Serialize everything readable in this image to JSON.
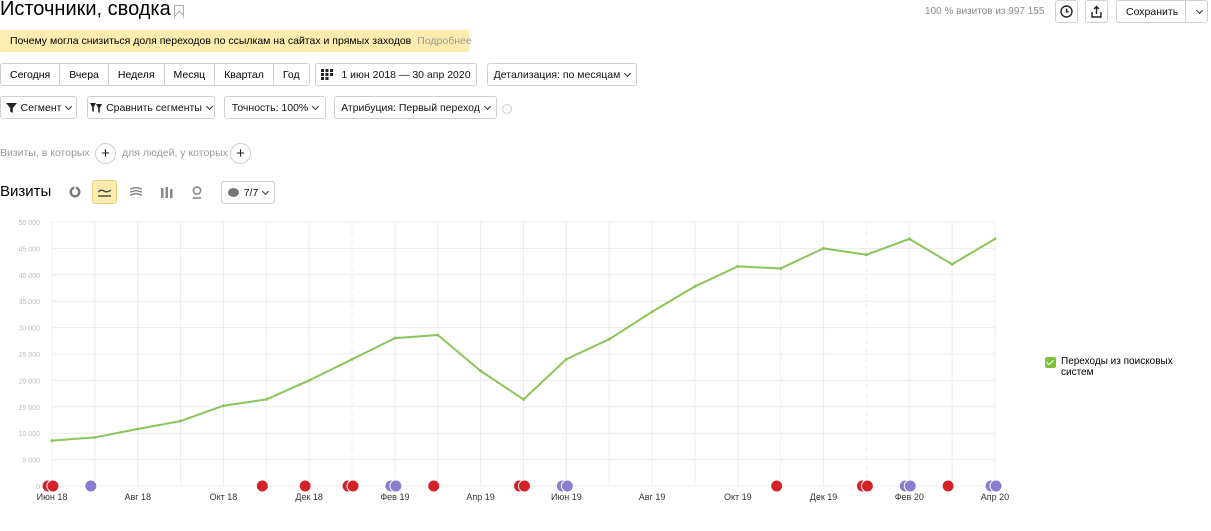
{
  "header": {
    "title": "Источники, сводка",
    "visits_info": "100 % визитов из 997 155",
    "save_label": "Сохранить"
  },
  "warning": {
    "text": "Почему могла снизиться доля переходов по ссылкам на сайтах и прямых заходов",
    "more": "Подробнее"
  },
  "periods": [
    "Сегодня",
    "Вчера",
    "Неделя",
    "Месяц",
    "Квартал",
    "Год"
  ],
  "date_range": "1 июн 2018 — 30 апр 2020",
  "detail_label": "Детализация: по месяцам",
  "filters": {
    "segment": "Сегмент",
    "compare": "Сравнить сегменты",
    "accuracy": "Точность: 100%",
    "attribution": "Атрибуция: Первый переход"
  },
  "segment_hint": {
    "visits_label": "Визиты, в которых",
    "people_label": "для людей, у которых"
  },
  "section_title": "Визиты",
  "annotations_label": "7/7",
  "colors": {
    "line": "#8ac55a",
    "accent_yellow": "#fcecae",
    "marker_red": "#d2232a",
    "marker_purple": "#8c7ccf"
  },
  "chart_data": {
    "type": "line",
    "series": [
      {
        "name": "Переходы из поисковых систем",
        "values": [
          8600,
          9200,
          10800,
          12300,
          15200,
          16400,
          20000,
          24000,
          28000,
          28600,
          21800,
          16400,
          24000,
          27800,
          33000,
          37800,
          41600,
          41200,
          45000,
          43800,
          46800,
          42000,
          46800
        ]
      }
    ],
    "x": [
      "2018-06",
      "2018-07",
      "2018-08",
      "2018-09",
      "2018-10",
      "2018-11",
      "2018-12",
      "2019-01",
      "2019-02",
      "2019-03",
      "2019-04",
      "2019-05",
      "2019-06",
      "2019-07",
      "2019-08",
      "2019-09",
      "2019-10",
      "2019-11",
      "2019-12",
      "2020-01",
      "2020-02",
      "2020-03",
      "2020-04"
    ],
    "x_tick_labels": [
      "Июн 18",
      "Авг 18",
      "Окт 18",
      "Дек 18",
      "Фев 19",
      "Апр 19",
      "Июн 19",
      "Авг 19",
      "Окт 19",
      "Дек 19",
      "Фев 20",
      "Апр 20"
    ],
    "y_tick_labels": [
      "0",
      "5 000",
      "10 000",
      "15 000",
      "20 000",
      "25 000",
      "30 000",
      "35 000",
      "40 000",
      "45 000",
      "50 000"
    ],
    "ylim": [
      0,
      50000
    ],
    "grid": true,
    "legend": "right",
    "markers": [
      {
        "x": 0,
        "type": "red"
      },
      {
        "x": 0,
        "type": "red"
      },
      {
        "x": 1,
        "type": "purple"
      },
      {
        "x": 5,
        "type": "red"
      },
      {
        "x": 6,
        "type": "red"
      },
      {
        "x": 7,
        "type": "red"
      },
      {
        "x": 7,
        "type": "red"
      },
      {
        "x": 8,
        "type": "purple"
      },
      {
        "x": 8,
        "type": "purple"
      },
      {
        "x": 9,
        "type": "red"
      },
      {
        "x": 11,
        "type": "red"
      },
      {
        "x": 11,
        "type": "red"
      },
      {
        "x": 12,
        "type": "purple"
      },
      {
        "x": 12,
        "type": "purple"
      },
      {
        "x": 17,
        "type": "red"
      },
      {
        "x": 19,
        "type": "red"
      },
      {
        "x": 19,
        "type": "red"
      },
      {
        "x": 20,
        "type": "purple"
      },
      {
        "x": 20,
        "type": "purple"
      },
      {
        "x": 21,
        "type": "red"
      },
      {
        "x": 22,
        "type": "purple"
      },
      {
        "x": 22,
        "type": "purple"
      }
    ]
  }
}
